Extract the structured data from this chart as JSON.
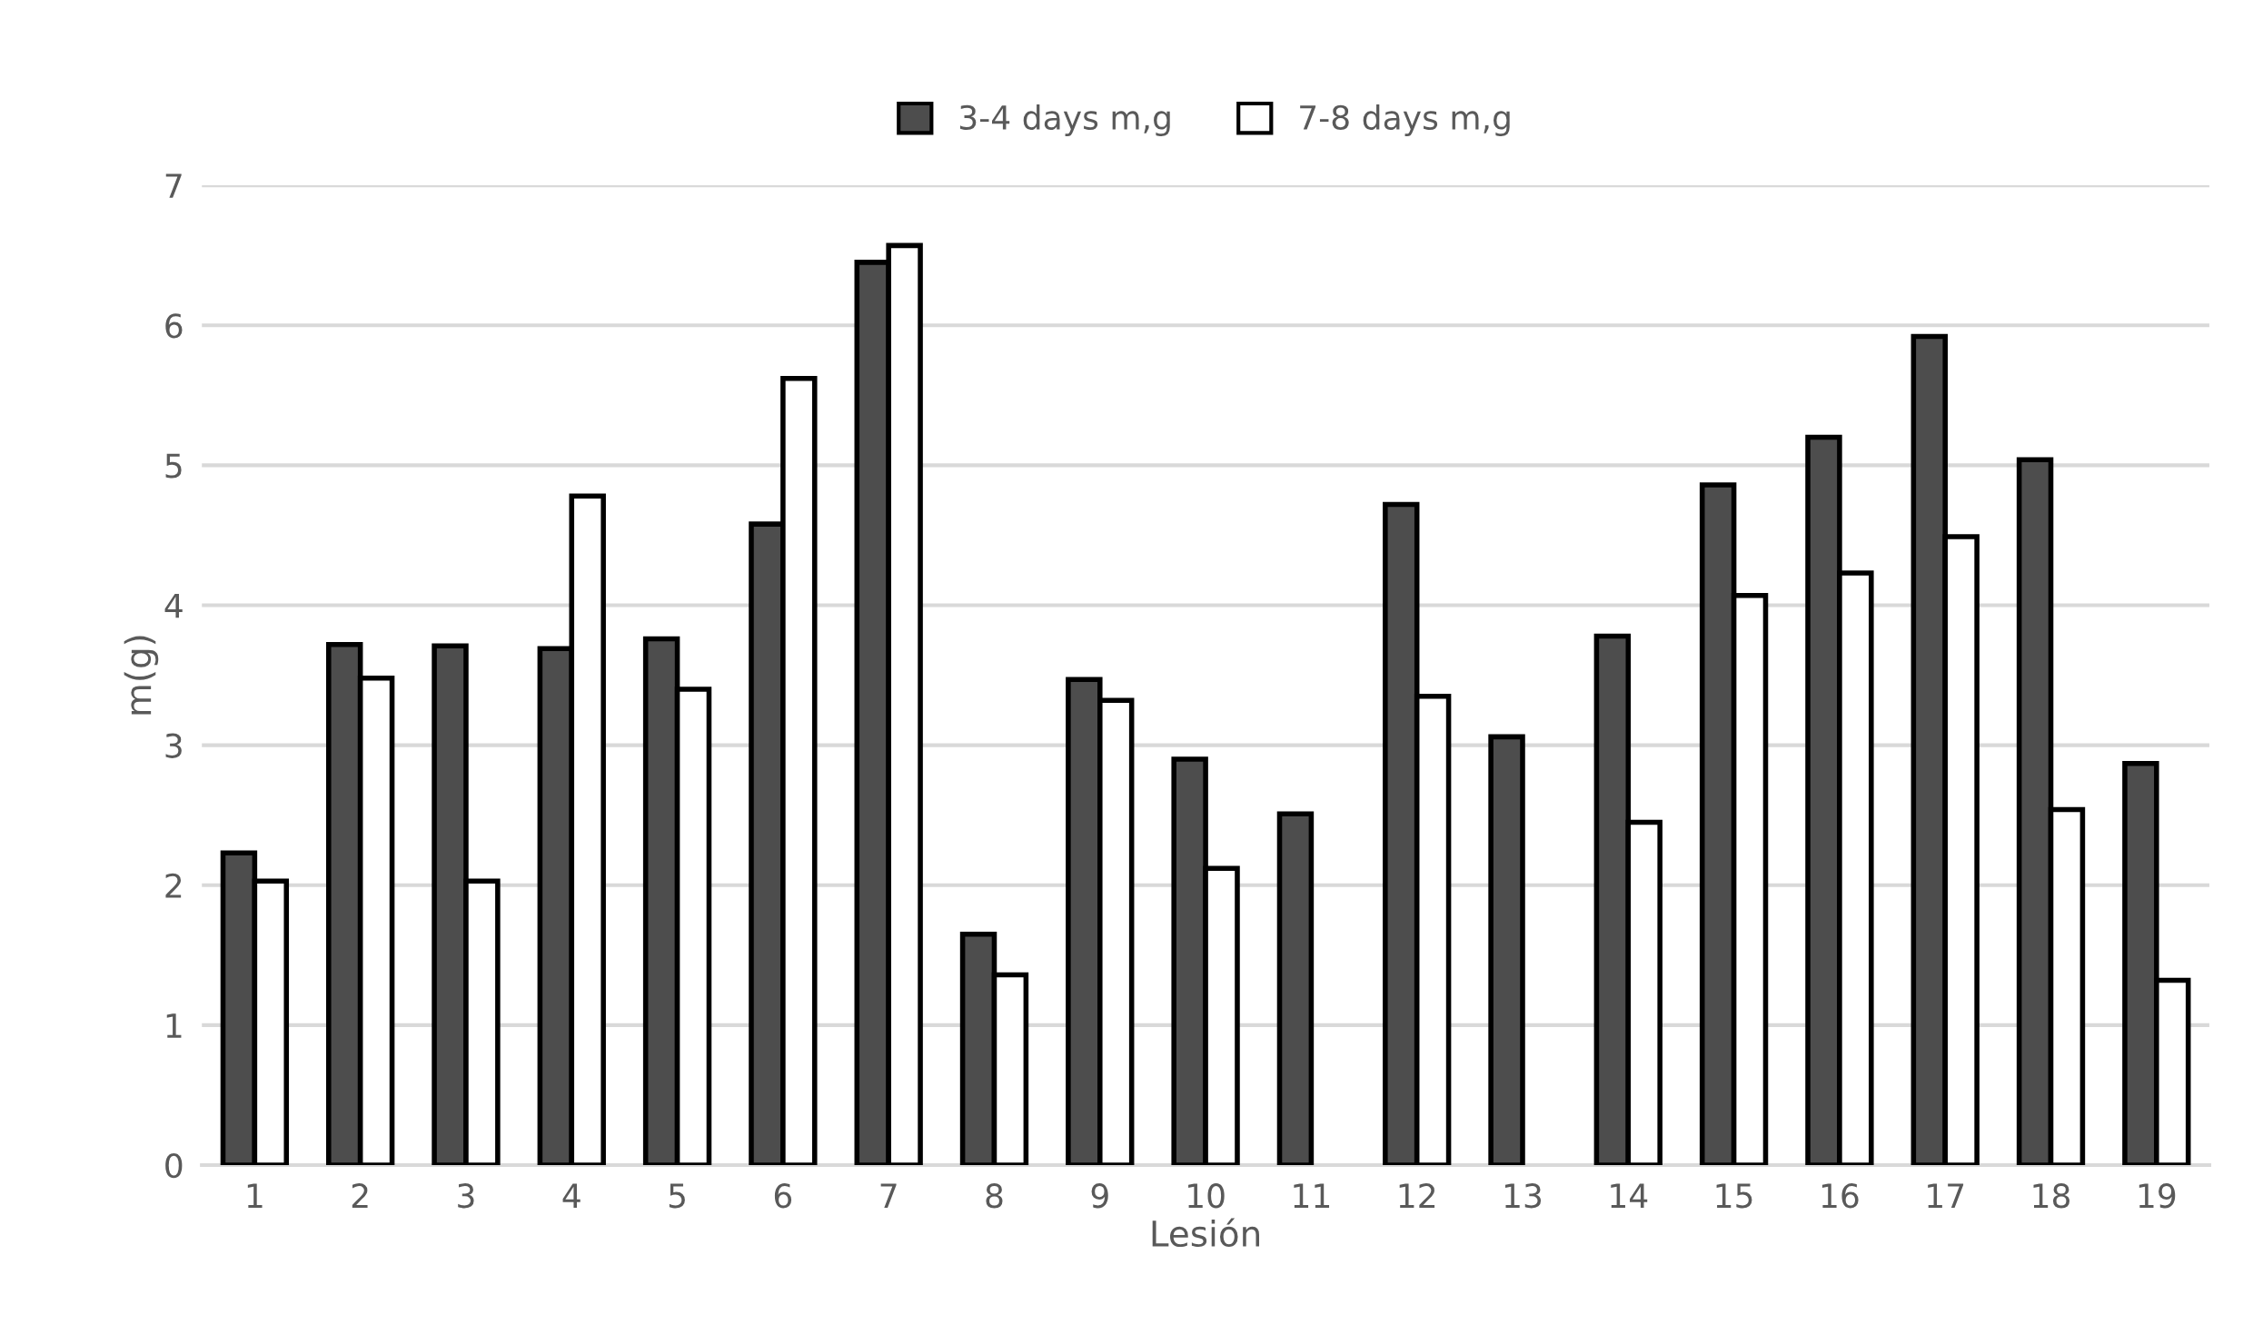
{
  "chart_data": {
    "type": "bar",
    "xlabel": "Lesión",
    "ylabel": "m(g)",
    "categories": [
      "1",
      "2",
      "3",
      "4",
      "5",
      "6",
      "7",
      "8",
      "9",
      "10",
      "11",
      "12",
      "13",
      "14",
      "15",
      "16",
      "17",
      "18",
      "19"
    ],
    "series": [
      {
        "name": "3-4 days m,g",
        "color": "#4d4d4d",
        "values": [
          2.23,
          3.72,
          3.71,
          3.69,
          3.76,
          4.58,
          6.45,
          1.65,
          3.47,
          2.9,
          2.51,
          4.72,
          3.06,
          3.78,
          4.86,
          5.2,
          5.92,
          5.04,
          2.87
        ]
      },
      {
        "name": "7-8 days m,g",
        "color": "#ffffff",
        "values": [
          2.03,
          3.48,
          2.03,
          4.78,
          3.4,
          5.62,
          6.57,
          1.36,
          3.32,
          2.12,
          null,
          3.35,
          null,
          2.45,
          4.07,
          4.23,
          4.49,
          2.54,
          1.32
        ]
      }
    ],
    "ylim": [
      0,
      7
    ],
    "yticks": [
      0,
      1,
      2,
      3,
      4,
      5,
      6,
      7
    ],
    "grid": "y",
    "legend": "top"
  }
}
